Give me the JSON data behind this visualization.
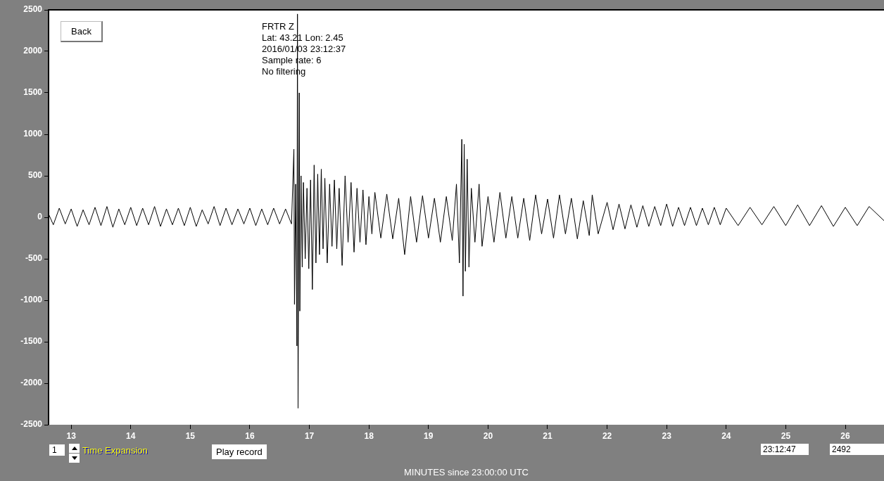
{
  "chart_data": {
    "type": "line",
    "xlabel": "MINUTES since 23:00:00 UTC",
    "xlim": [
      12.62,
      26.65
    ],
    "xticks": [
      13,
      14,
      15,
      16,
      17,
      18,
      19,
      20,
      21,
      22,
      23,
      24,
      25,
      26
    ],
    "ylim": [
      -2500,
      2500
    ],
    "yticks": [
      -2500,
      -2000,
      -1500,
      -1000,
      -500,
      0,
      500,
      1000,
      1500,
      2000,
      2500
    ],
    "series": [
      {
        "color": "#000000",
        "x": [
          12.62,
          12.7,
          12.8,
          12.9,
          13.0,
          13.1,
          13.2,
          13.3,
          13.4,
          13.5,
          13.6,
          13.7,
          13.8,
          13.9,
          14.0,
          14.1,
          14.2,
          14.3,
          14.4,
          14.5,
          14.6,
          14.7,
          14.8,
          14.9,
          15.0,
          15.1,
          15.2,
          15.3,
          15.4,
          15.5,
          15.6,
          15.7,
          15.8,
          15.9,
          16.0,
          16.1,
          16.2,
          16.3,
          16.4,
          16.5,
          16.6,
          16.7,
          16.74,
          16.75,
          16.77,
          16.79,
          16.8,
          16.81,
          16.83,
          16.84,
          16.86,
          16.88,
          16.9,
          16.93,
          16.96,
          16.99,
          17.02,
          17.05,
          17.08,
          17.11,
          17.14,
          17.17,
          17.2,
          17.23,
          17.26,
          17.3,
          17.34,
          17.38,
          17.42,
          17.46,
          17.5,
          17.55,
          17.6,
          17.65,
          17.7,
          17.75,
          17.8,
          17.85,
          17.9,
          17.95,
          18.0,
          18.05,
          18.1,
          18.2,
          18.3,
          18.4,
          18.5,
          18.6,
          18.7,
          18.8,
          18.9,
          19.0,
          19.1,
          19.2,
          19.3,
          19.4,
          19.47,
          19.52,
          19.56,
          19.58,
          19.6,
          19.62,
          19.65,
          19.68,
          19.72,
          19.78,
          19.85,
          19.9,
          20.0,
          20.1,
          20.2,
          20.3,
          20.4,
          20.5,
          20.6,
          20.7,
          20.8,
          20.9,
          21.0,
          21.1,
          21.2,
          21.3,
          21.4,
          21.5,
          21.6,
          21.7,
          21.75,
          21.85,
          22.0,
          22.1,
          22.2,
          22.3,
          22.4,
          22.5,
          22.6,
          22.7,
          22.8,
          22.9,
          23.0,
          23.1,
          23.2,
          23.3,
          23.4,
          23.5,
          23.6,
          23.7,
          23.8,
          23.9,
          24.0,
          24.2,
          24.4,
          24.6,
          24.8,
          25.0,
          25.2,
          25.4,
          25.6,
          25.8,
          26.0,
          26.2,
          26.4,
          26.65
        ],
        "values": [
          40,
          -90,
          110,
          -80,
          100,
          -110,
          90,
          -90,
          120,
          -100,
          130,
          -120,
          100,
          -90,
          120,
          -100,
          110,
          -90,
          130,
          -110,
          100,
          -90,
          110,
          -100,
          120,
          -110,
          90,
          -80,
          130,
          -100,
          110,
          -90,
          100,
          -80,
          110,
          -100,
          100,
          -90,
          110,
          -80,
          100,
          -80,
          820,
          -1050,
          400,
          -1550,
          2450,
          -2300,
          1500,
          -1130,
          500,
          -600,
          420,
          -500,
          350,
          -620,
          450,
          -870,
          630,
          -550,
          520,
          -450,
          580,
          -380,
          470,
          -550,
          400,
          -350,
          450,
          -380,
          350,
          -580,
          500,
          -300,
          420,
          -420,
          350,
          -300,
          330,
          -330,
          250,
          -200,
          300,
          -250,
          280,
          -260,
          230,
          -450,
          250,
          -300,
          260,
          -250,
          230,
          -300,
          250,
          -280,
          400,
          -550,
          940,
          -950,
          880,
          -650,
          700,
          -600,
          350,
          -300,
          400,
          -350,
          250,
          -300,
          300,
          -250,
          250,
          -250,
          230,
          -280,
          270,
          -200,
          220,
          -250,
          270,
          -200,
          230,
          -260,
          200,
          -220,
          270,
          -200,
          180,
          -150,
          160,
          -140,
          150,
          -120,
          140,
          -110,
          130,
          -100,
          160,
          -110,
          120,
          -100,
          120,
          -100,
          110,
          -90,
          120,
          -90,
          110,
          -100,
          120,
          -90,
          130,
          -100,
          150,
          -100,
          140,
          -110,
          120,
          -100,
          130,
          -40
        ]
      }
    ],
    "annotations": [
      "FRTR  Z",
      "Lat: 43.21 Lon: 2.45",
      "2016/01/03 23:12:37",
      "Sample rate: 6",
      "No filtering",
      "Back",
      "1",
      "Time Expansion",
      "Play record",
      "23:12:47",
      "2492"
    ]
  }
}
